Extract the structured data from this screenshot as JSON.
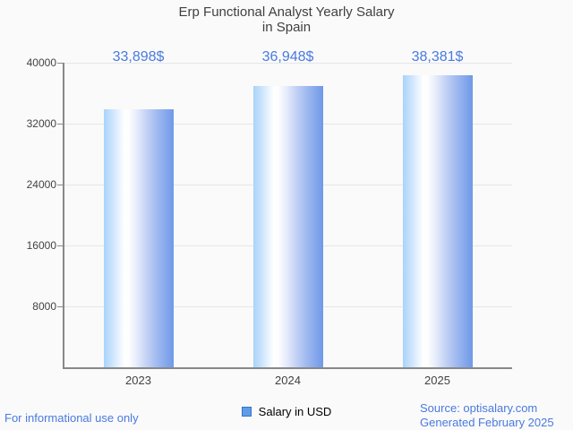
{
  "chart_data": {
    "type": "bar",
    "title": "Erp Functional Analyst Yearly Salary in Spain",
    "title_lines": [
      "Erp Functional Analyst Yearly Salary",
      "in Spain"
    ],
    "categories": [
      "2023",
      "2024",
      "2025"
    ],
    "series": [
      {
        "name": "Salary in USD",
        "values": [
          33898,
          36948,
          38381
        ]
      }
    ],
    "value_labels": [
      "33,898$",
      "36,948$",
      "38,381$"
    ],
    "xlabel": "",
    "ylabel": "",
    "ylim": [
      0,
      40000
    ],
    "ytick_interval": 8000,
    "ytick_labels": [
      "40000",
      "32000",
      "24000",
      "16000",
      "8000"
    ],
    "grid": true,
    "legend_position": "bottom"
  },
  "legend": {
    "label": "Salary in USD",
    "swatch_color": "#5e9ce8",
    "swatch_border": "#3a72c2"
  },
  "footer": {
    "left": "For informational use only",
    "source": "Source: optisalary.com",
    "generated": "Generated February 2025"
  },
  "colors": {
    "background": "#fafafa",
    "bar_left": "#a9d3fa",
    "bar_highlight": "#ffffff",
    "bar_right": "#6f99e9",
    "value_text": "#4a7ae0",
    "footer_text": "#4a7ae0",
    "axis_text": "#424242",
    "title_text": "#404040",
    "axis_line": "#888888",
    "gridline": "#e6e6e6"
  }
}
